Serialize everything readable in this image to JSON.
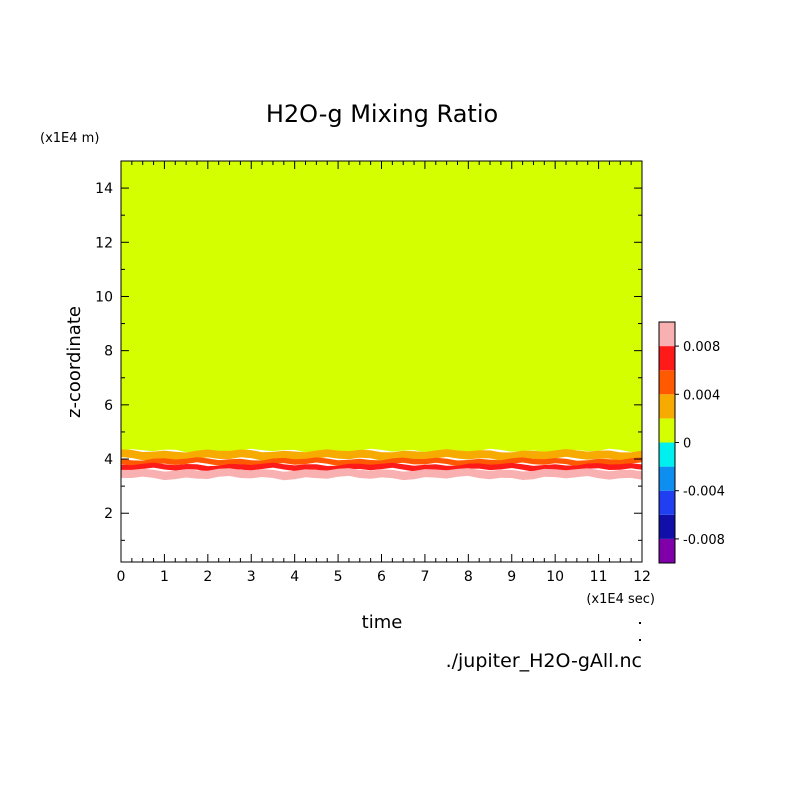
{
  "chart_data": {
    "type": "heatmap",
    "title": "H2O-g Mixing Ratio",
    "xlabel": "time",
    "ylabel": "z-coordinate",
    "x_unit_label": "(x1E4 sec)",
    "y_unit_label": "(x1E4 m)",
    "source_label": "./jupiter_H2O-gAll.nc",
    "xlim": [
      0,
      12
    ],
    "ylim": [
      0.2,
      15
    ],
    "x_ticks": [
      "0",
      "1",
      "2",
      "3",
      "4",
      "5",
      "6",
      "7",
      "8",
      "9",
      "10",
      "11",
      "12"
    ],
    "y_ticks": [
      "2",
      "4",
      "6",
      "8",
      "10",
      "12",
      "14"
    ],
    "colorbar": {
      "levels": [
        -0.01,
        -0.008,
        -0.006,
        -0.004,
        -0.002,
        0,
        0.002,
        0.004,
        0.006,
        0.008,
        0.01
      ],
      "colors": [
        "#7f00a8",
        "#1010a8",
        "#1f3ff0",
        "#0e8ff0",
        "#00f0f0",
        "#d4ff00",
        "#f7aa00",
        "#ff5a00",
        "#ff1a1a",
        "#f8b0b0"
      ],
      "tick_labels": [
        "-0.008",
        "-0.004",
        "0",
        "0.004",
        "0.008"
      ],
      "tick_values": [
        -0.008,
        -0.004,
        0,
        0.004,
        0.008
      ]
    },
    "bands": [
      {
        "value_range": [
          0.008,
          0.01
        ],
        "z_lower": 3.3,
        "z_upper": 3.6
      },
      {
        "value_range": [
          0.006,
          0.008
        ],
        "z_lower": 3.6,
        "z_upper": 3.8
      },
      {
        "value_range": [
          0.004,
          0.006
        ],
        "z_lower": 3.8,
        "z_upper": 4.0
      },
      {
        "value_range": [
          0.002,
          0.004
        ],
        "z_lower": 4.0,
        "z_upper": 4.3
      },
      {
        "value_range": [
          0,
          0.002
        ],
        "z_lower": 4.3,
        "z_upper": 15
      }
    ],
    "below_lowest_band": "white (no color)"
  },
  "colors": {
    "background": "#ffffff",
    "axis": "#000000"
  }
}
